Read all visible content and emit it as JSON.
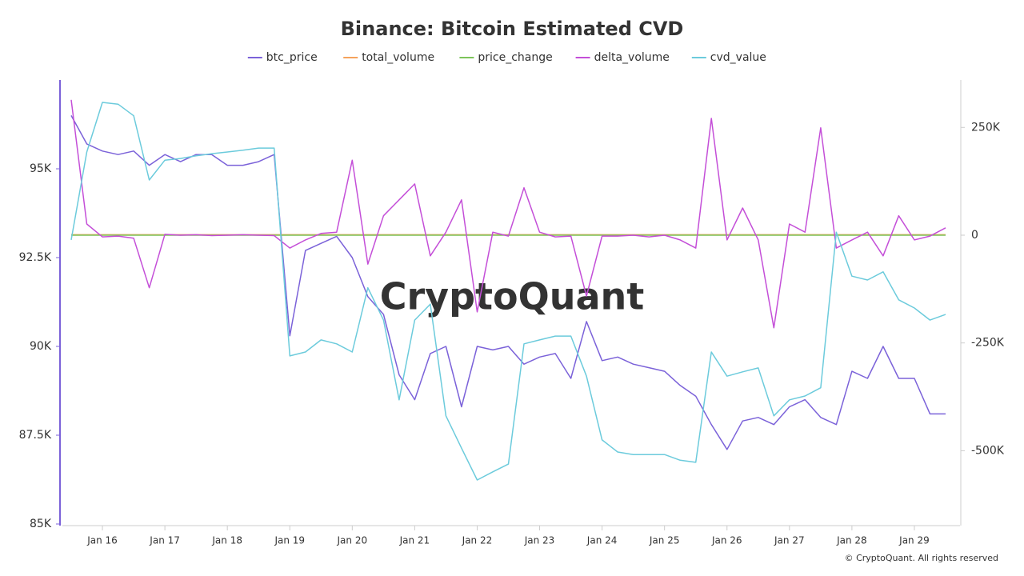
{
  "chart_data": {
    "type": "line",
    "title": "Binance: Bitcoin Estimated CVD",
    "watermark": "CryptoQuant",
    "footer": "© CryptoQuant. All rights reserved",
    "categories": [
      null,
      null,
      "Jan 16",
      null,
      null,
      null,
      "Jan 17",
      null,
      null,
      null,
      "Jan 18",
      null,
      null,
      null,
      "Jan 19",
      null,
      null,
      null,
      "Jan 20",
      null,
      null,
      null,
      "Jan 21",
      null,
      null,
      null,
      "Jan 22",
      null,
      null,
      null,
      "Jan 23",
      null,
      null,
      null,
      "Jan 24",
      null,
      null,
      null,
      "Jan 25",
      null,
      null,
      null,
      "Jan 26",
      null,
      null,
      null,
      "Jan 27",
      null,
      null,
      null,
      "Jan 28",
      null,
      null,
      null,
      "Jan 29",
      null,
      null
    ],
    "ylim": [
      85000,
      97500
    ],
    "yticks": [
      {
        "value": 85000,
        "label": "85K"
      },
      {
        "value": 87500,
        "label": "87.5K"
      },
      {
        "value": 90000,
        "label": "90K"
      },
      {
        "value": 92500,
        "label": "92.5K"
      },
      {
        "value": 95000,
        "label": "95K"
      }
    ],
    "y2lim": [
      -670000,
      360000
    ],
    "y2ticks": [
      {
        "value": -500000,
        "label": "-500K"
      },
      {
        "value": -250000,
        "label": "-250K"
      },
      0,
      {
        "value": 250000,
        "label": "250K"
      }
    ],
    "series": [
      {
        "name": "btc_price",
        "color": "#7b62d9",
        "values": [
          96500,
          95700,
          95500,
          95400,
          95500,
          95100,
          95400,
          95200,
          95400,
          95400,
          95100,
          95100,
          95200,
          95400,
          90300,
          92700,
          92900,
          93100,
          92500,
          91400,
          90900,
          89200,
          88500,
          89800,
          90000,
          88300,
          90000,
          89900,
          90000,
          89500,
          89700,
          89800,
          89100,
          90700,
          89600,
          89700,
          89500,
          89400,
          89300,
          88900,
          88600,
          87800,
          87100,
          87900,
          88000,
          87800,
          88300,
          88500,
          88000,
          87800,
          89300,
          89100,
          90000,
          89100,
          89100,
          88100,
          88100
        ]
      },
      {
        "name": "total_volume",
        "color": "#f5a35c",
        "axis": "y2",
        "values": [
          1000,
          1000,
          1000,
          1000,
          1000,
          1000,
          1000,
          1000,
          1000,
          1000,
          1000,
          1000,
          1000,
          1000,
          1000,
          1000,
          1000,
          1000,
          1000,
          1000,
          1000,
          1000,
          1000,
          1000,
          1000,
          1000,
          1000,
          1000,
          1000,
          1000,
          1000,
          1000,
          1000,
          1000,
          1000,
          1000,
          1000,
          1000,
          1000,
          1000,
          1000,
          1000,
          1000,
          1000,
          1000,
          1000,
          1000,
          1000,
          1000,
          1000,
          1000,
          1000,
          1000,
          1000,
          1000,
          1000,
          1000
        ]
      },
      {
        "name": "price_change",
        "color": "#7cc45a",
        "axis": "y2",
        "values": [
          0,
          0,
          0,
          0,
          0,
          0,
          0,
          0,
          0,
          0,
          0,
          0,
          0,
          0,
          0,
          0,
          0,
          0,
          0,
          0,
          0,
          0,
          0,
          0,
          0,
          0,
          0,
          0,
          0,
          0,
          0,
          0,
          0,
          0,
          0,
          0,
          0,
          0,
          0,
          0,
          0,
          0,
          0,
          0,
          0,
          0,
          0,
          0,
          0,
          0,
          0,
          0,
          0,
          0,
          0,
          0,
          0
        ]
      },
      {
        "name": "delta_volume",
        "color": "#c44fd8",
        "axis": "y2",
        "values": [
          314000,
          26000,
          -4000,
          -2000,
          -7000,
          -122000,
          2000,
          0,
          1000,
          -1000,
          0,
          1000,
          0,
          -1000,
          -30000,
          -11000,
          4000,
          7000,
          174000,
          -67000,
          45000,
          82000,
          119000,
          -48000,
          7000,
          82000,
          -178000,
          7000,
          -2000,
          110000,
          7000,
          -4000,
          -2000,
          -141000,
          -2000,
          -2000,
          0,
          -4000,
          0,
          -11000,
          -30000,
          271000,
          -11000,
          63000,
          -11000,
          -215000,
          26000,
          7000,
          249000,
          -30000,
          -11000,
          7000,
          -48000,
          45000,
          -11000,
          -2000,
          17000
        ]
      },
      {
        "name": "cvd_value",
        "color": "#6ccbdc",
        "axis": "y2",
        "values": [
          -11000,
          193000,
          308000,
          304000,
          277000,
          128000,
          174000,
          178000,
          184000,
          189000,
          193000,
          197000,
          202000,
          202000,
          -280000,
          -271000,
          -243000,
          -252000,
          -271000,
          -122000,
          -197000,
          -382000,
          -197000,
          -160000,
          -419000,
          -494000,
          -568000,
          -549000,
          -531000,
          -252000,
          -243000,
          -234000,
          -234000,
          -327000,
          -475000,
          -503000,
          -509000,
          -509000,
          -509000,
          -522000,
          -527000,
          -271000,
          -327000,
          -317000,
          -308000,
          -419000,
          -382000,
          -373000,
          -354000,
          7000,
          -95000,
          -104000,
          -85000,
          -150000,
          -169000,
          -197000,
          -184000
        ]
      }
    ]
  }
}
